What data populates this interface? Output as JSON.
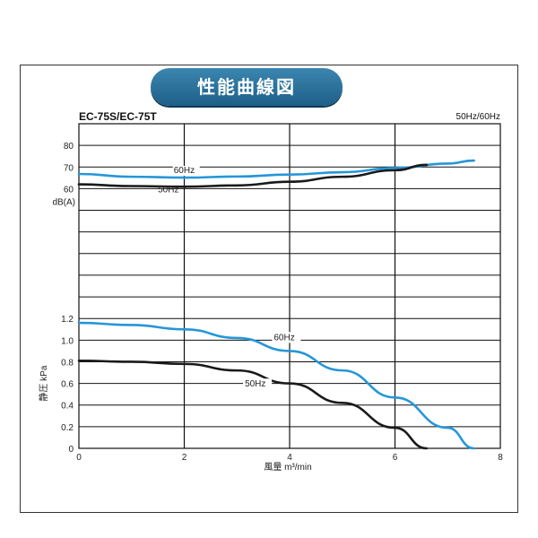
{
  "header": {
    "title": "性能曲線図",
    "model": "EC-75S/EC-75T",
    "frequency": "50Hz/60Hz"
  },
  "chart_data": [
    {
      "type": "line",
      "ylabel": "dB(A)",
      "xlim": [
        0,
        8
      ],
      "ylim": [
        20,
        80
      ],
      "y_ticks": [
        "60",
        "70",
        "80"
      ],
      "series": [
        {
          "name": "60Hz",
          "color": "#2596d8",
          "points": [
            [
              0,
              66.8
            ],
            [
              1,
              65.5
            ],
            [
              2,
              65.1
            ],
            [
              3,
              65.6
            ],
            [
              4,
              66.5
            ],
            [
              5,
              67.6
            ],
            [
              6,
              69.5
            ],
            [
              7,
              71.6
            ],
            [
              7.5,
              73
            ]
          ]
        },
        {
          "name": "50Hz",
          "color": "#1a1a1a",
          "points": [
            [
              0,
              62
            ],
            [
              1,
              61.2
            ],
            [
              2,
              60.9
            ],
            [
              3,
              61.5
            ],
            [
              4,
              63.2
            ],
            [
              5,
              65.5
            ],
            [
              6,
              68.5
            ],
            [
              6.6,
              71
            ]
          ]
        }
      ]
    },
    {
      "type": "line",
      "xlabel": "風量 m³/min",
      "ylabel": "静圧 kPa",
      "xlim": [
        0,
        8
      ],
      "ylim": [
        0,
        1.2
      ],
      "x_ticks": [
        "0",
        "2",
        "4",
        "6",
        "8"
      ],
      "y_ticks": [
        "0",
        "0.2",
        "0.4",
        "0.6",
        "0.8",
        "1.0",
        "1.2"
      ],
      "series": [
        {
          "name": "60Hz",
          "color": "#2596d8",
          "points": [
            [
              0,
              1.16
            ],
            [
              1,
              1.14
            ],
            [
              2,
              1.1
            ],
            [
              3,
              1.02
            ],
            [
              4,
              0.9
            ],
            [
              5,
              0.72
            ],
            [
              6,
              0.47
            ],
            [
              7,
              0.19
            ],
            [
              7.5,
              0
            ]
          ]
        },
        {
          "name": "50Hz",
          "color": "#1a1a1a",
          "points": [
            [
              0,
              0.81
            ],
            [
              1,
              0.8
            ],
            [
              2,
              0.78
            ],
            [
              3,
              0.72
            ],
            [
              4,
              0.6
            ],
            [
              5,
              0.42
            ],
            [
              6,
              0.19
            ],
            [
              6.6,
              0
            ]
          ]
        }
      ]
    }
  ]
}
